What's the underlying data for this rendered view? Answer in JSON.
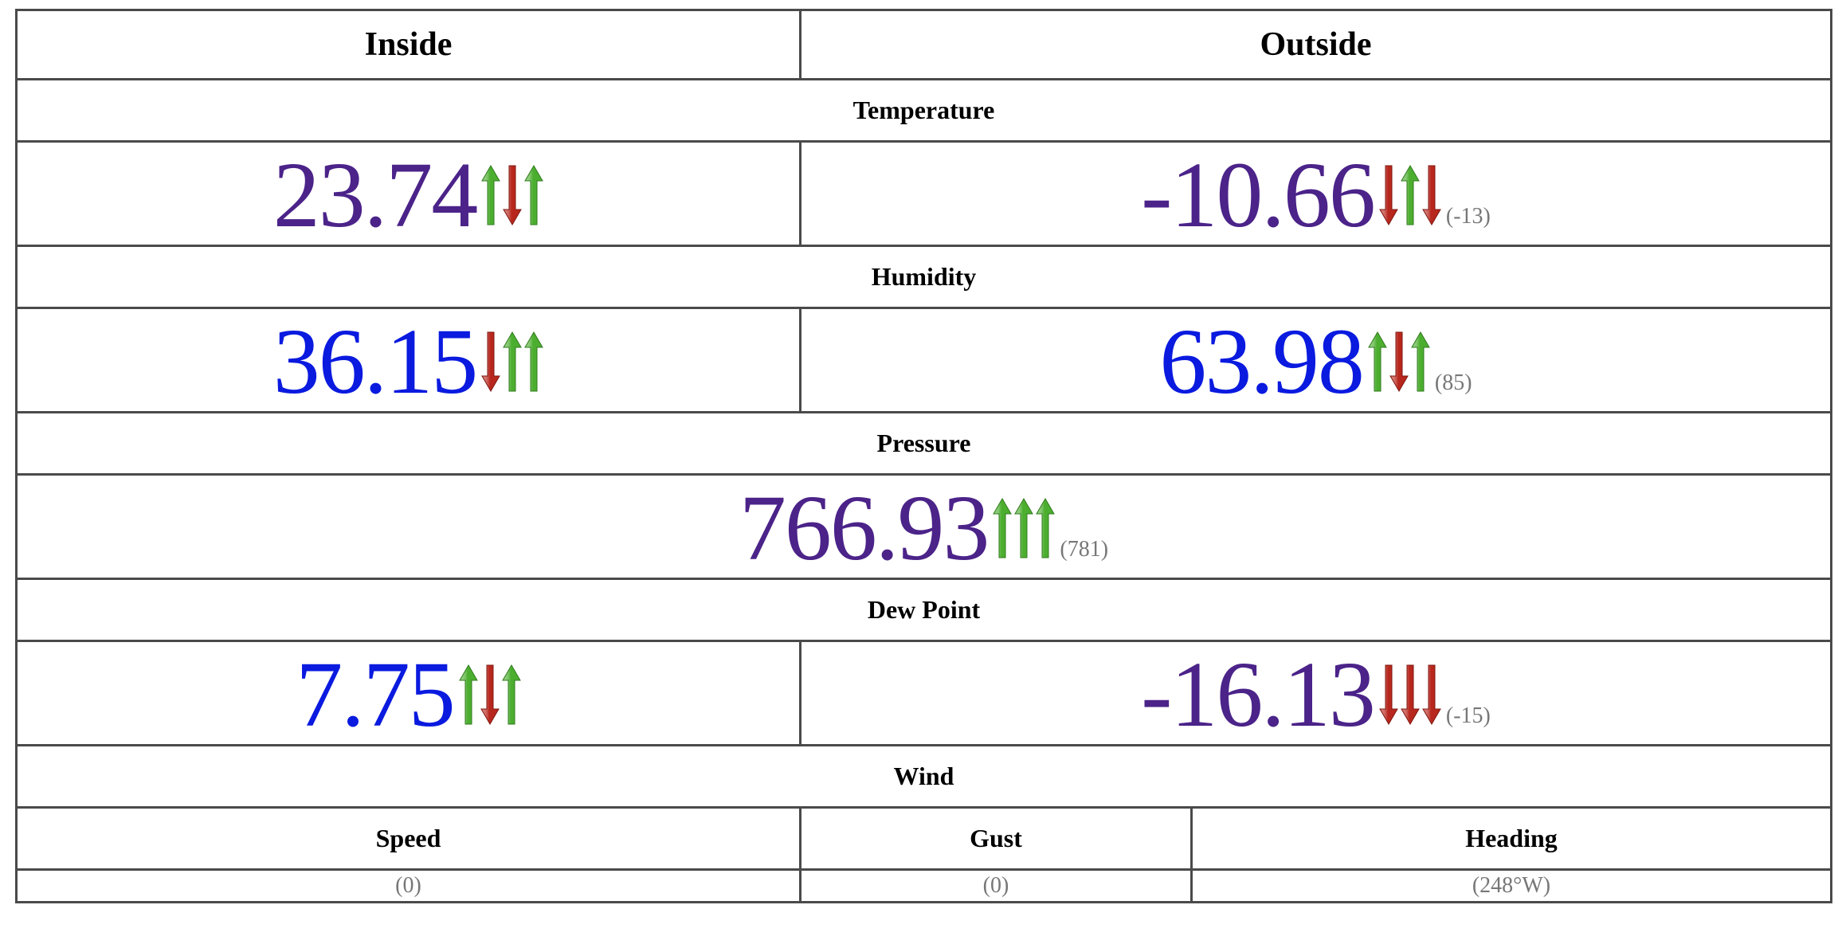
{
  "header": {
    "inside_label": "Inside",
    "outside_label": "Outside"
  },
  "sections": {
    "temperature": "Temperature",
    "humidity": "Humidity",
    "pressure": "Pressure",
    "dew_point": "Dew Point",
    "wind": "Wind"
  },
  "temperature": {
    "inside": {
      "value": "23.74",
      "trend": [
        "up",
        "down",
        "up"
      ]
    },
    "outside": {
      "value": "-10.66",
      "trend": [
        "down",
        "up",
        "down"
      ],
      "extreme": "(-13)"
    }
  },
  "humidity": {
    "inside": {
      "value": "36.15",
      "trend": [
        "down",
        "up",
        "up"
      ]
    },
    "outside": {
      "value": "63.98",
      "trend": [
        "up",
        "down",
        "up"
      ],
      "extreme": "(85)"
    }
  },
  "pressure": {
    "value": "766.93",
    "trend": [
      "up",
      "up",
      "up"
    ],
    "extreme": "(781)"
  },
  "dew_point": {
    "inside": {
      "value": "7.75",
      "trend": [
        "up",
        "down",
        "up"
      ]
    },
    "outside": {
      "value": "-16.13",
      "trend": [
        "down",
        "down",
        "down"
      ],
      "extreme": "(-15)"
    }
  },
  "wind": {
    "speed_label": "Speed",
    "gust_label": "Gust",
    "heading_label": "Heading",
    "speed_value": "(0)",
    "gust_value": "(0)",
    "heading_value": "(248°W)"
  },
  "colors": {
    "value_purple": "#4b2389",
    "value_blue": "#0a1adf",
    "arrow_up_green": "#4cae2f",
    "arrow_down_red": "#b8271d"
  },
  "icons": {
    "up": "trend-up-arrow-icon",
    "down": "trend-down-arrow-icon"
  }
}
